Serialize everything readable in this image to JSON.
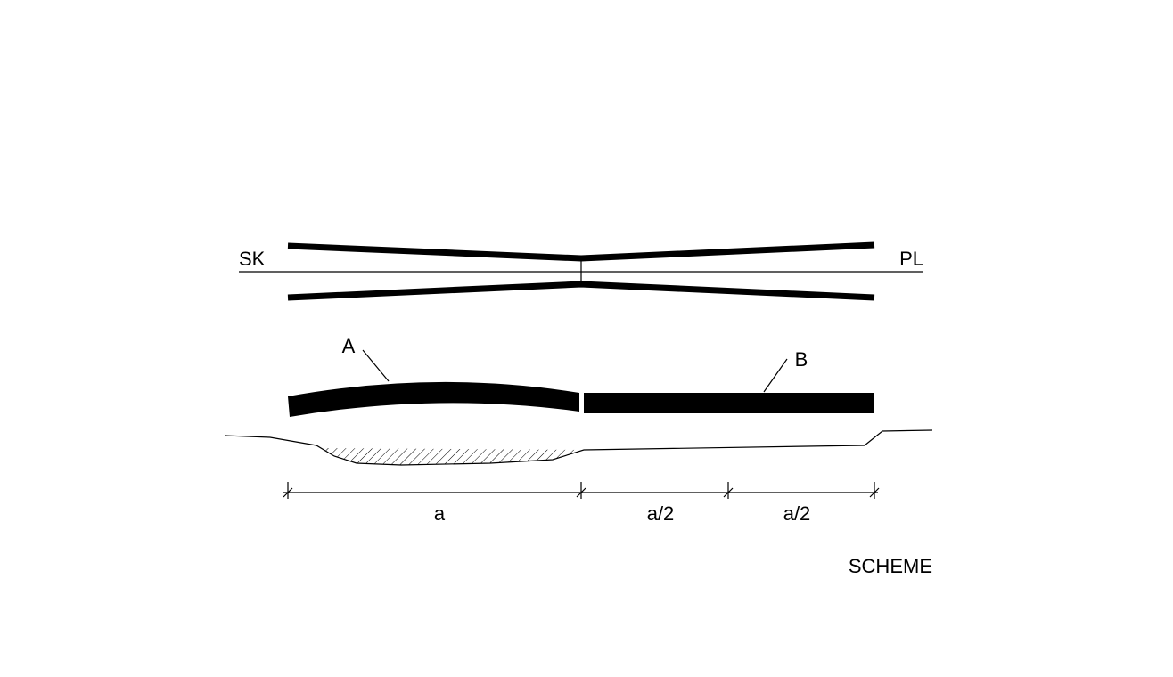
{
  "labels": {
    "left": "SK",
    "right": "PL",
    "beam_a": "A",
    "beam_b": "B"
  },
  "dimensions": [
    "a",
    "a/2",
    "a/2"
  ],
  "caption": "SCHEME"
}
